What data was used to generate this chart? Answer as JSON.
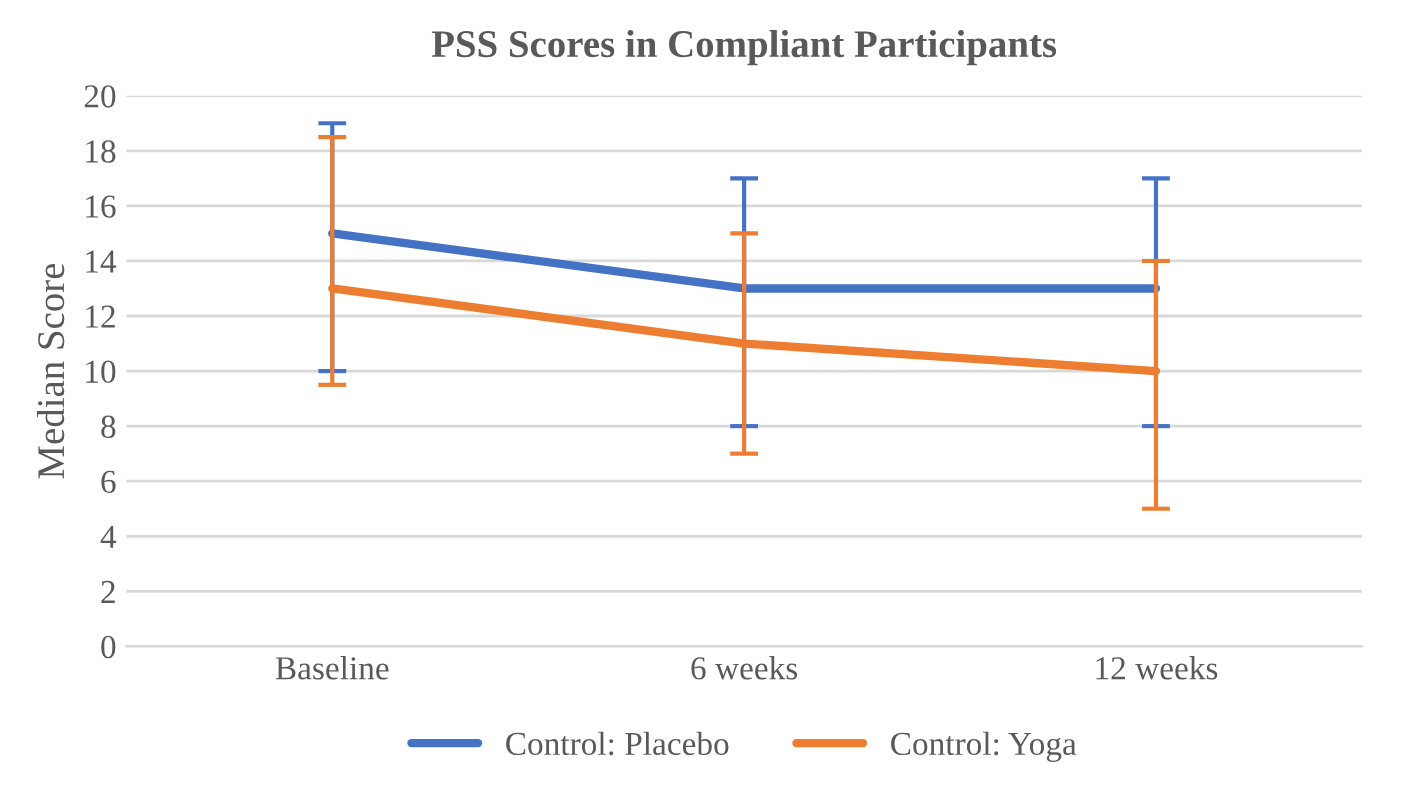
{
  "chart_data": {
    "type": "line",
    "title": "PSS Scores in Compliant Participants",
    "ylabel": "Median Score",
    "categories": [
      "Baseline",
      "6 weeks",
      "12 weeks"
    ],
    "series": [
      {
        "name": "Control: Placebo",
        "color": "#4472c4",
        "values": [
          15,
          13,
          13
        ],
        "errors": [
          [
            10,
            19
          ],
          [
            8,
            17
          ],
          [
            8,
            17
          ]
        ]
      },
      {
        "name": "Control: Yoga",
        "color": "#ed7d31",
        "values": [
          13,
          11,
          10
        ],
        "errors": [
          [
            9.5,
            18.5
          ],
          [
            7,
            15
          ],
          [
            5,
            14
          ]
        ]
      }
    ],
    "ylim": [
      0,
      20
    ],
    "yticks": [
      0,
      2,
      4,
      6,
      8,
      10,
      12,
      14,
      16,
      18,
      20
    ],
    "grid": "y",
    "legend": "bottom",
    "marker": "none",
    "line_style": "solid"
  }
}
